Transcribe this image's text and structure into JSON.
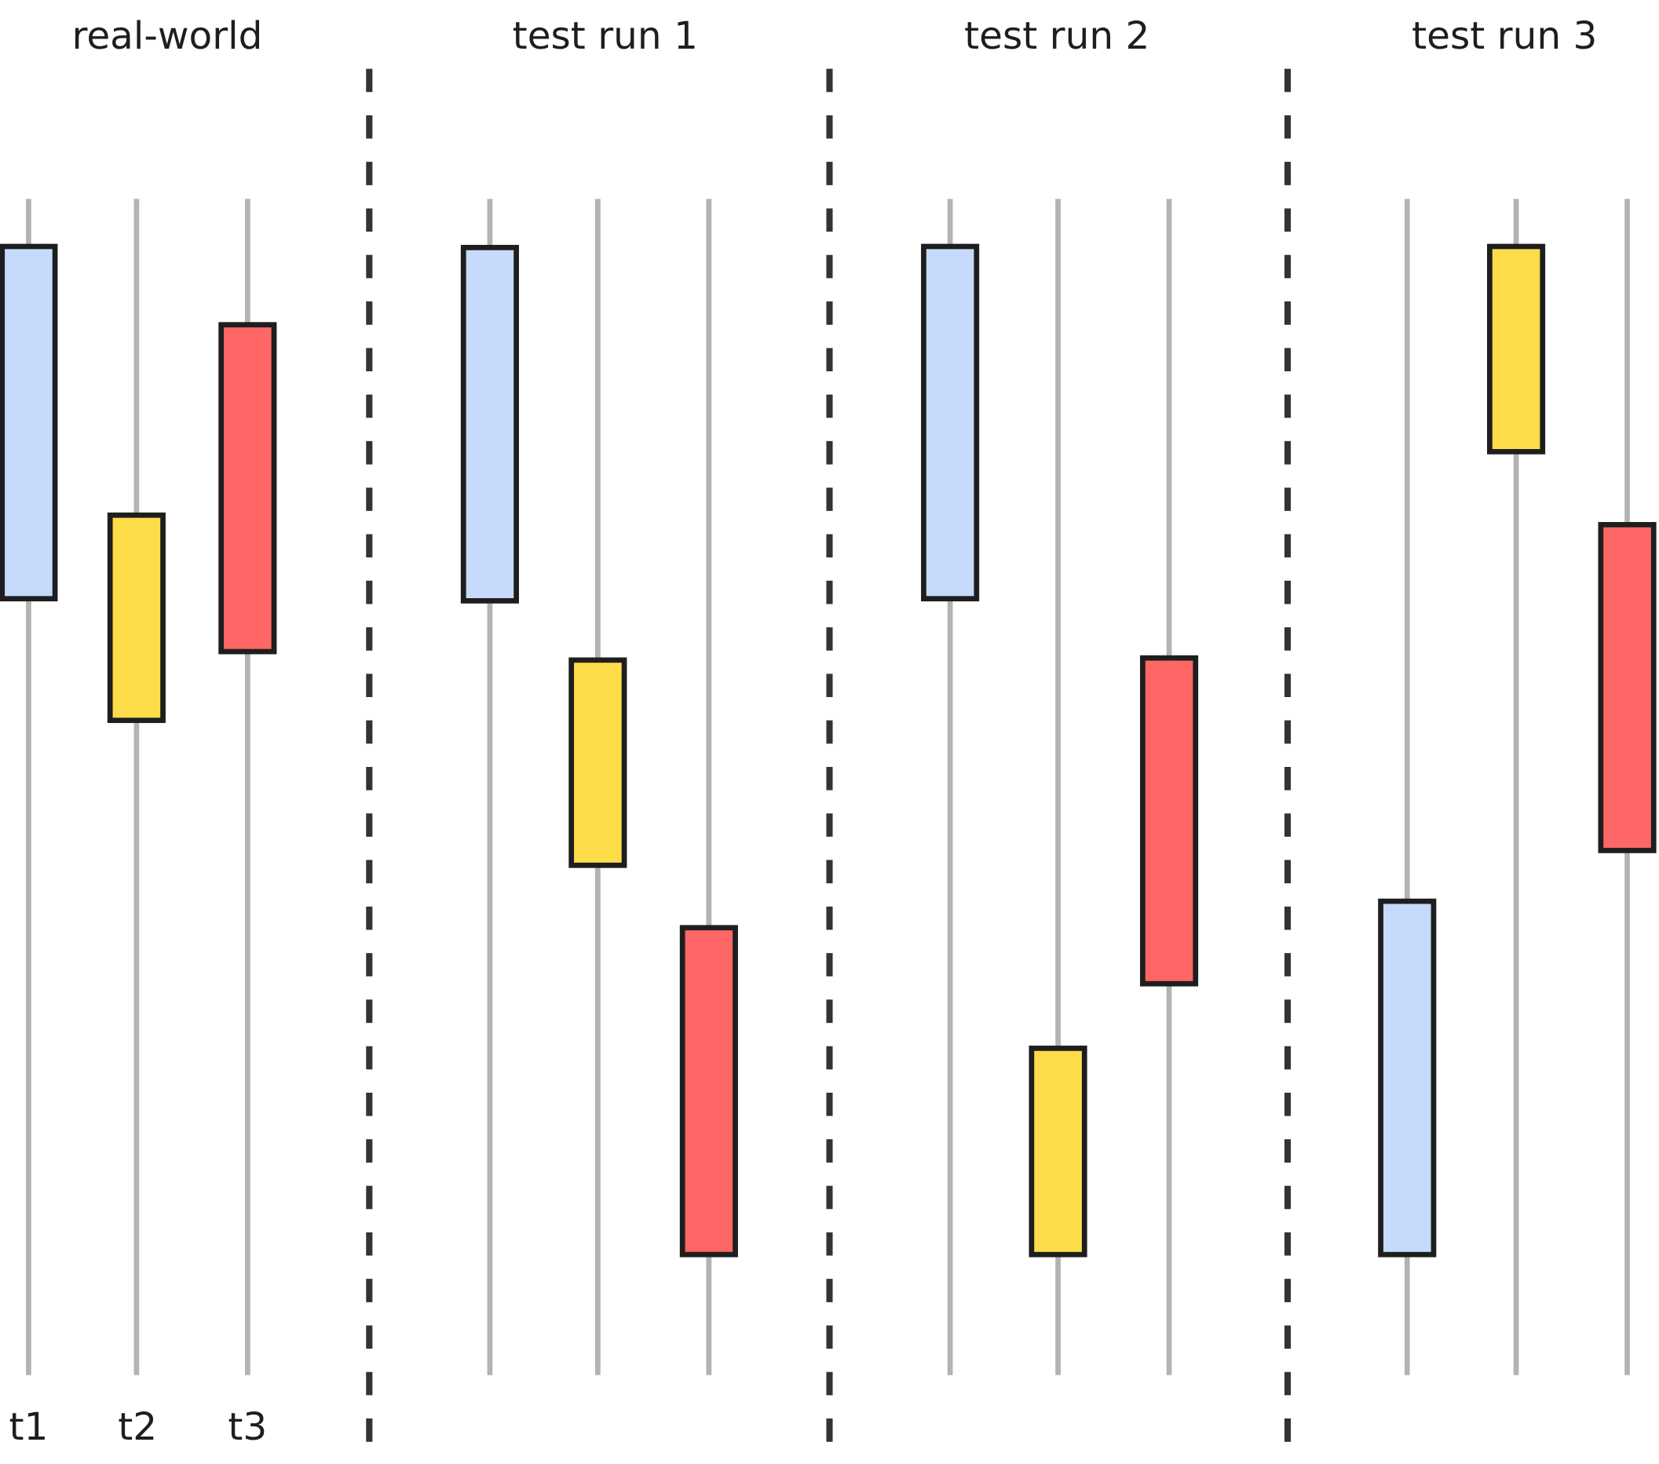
{
  "groups": [
    {
      "title": "real-world"
    },
    {
      "title": "test run 1"
    },
    {
      "title": "test run 2"
    },
    {
      "title": "test run 3"
    }
  ],
  "lane_labels": [
    "t1",
    "t2",
    "t3"
  ],
  "colors": {
    "t1": "#c6dafc",
    "t2": "#fedd4b",
    "t3": "#ff6666",
    "box_stroke": "#1e1e1e",
    "lane_line": "#b3b3b3",
    "divider": "#333333"
  }
}
